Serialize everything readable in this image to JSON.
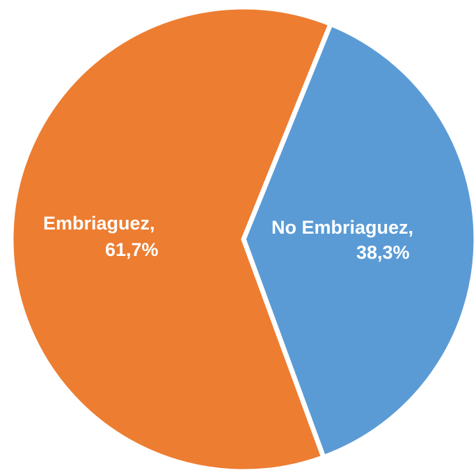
{
  "chart_data": {
    "type": "pie",
    "slices": [
      {
        "name": "No Embriaguez",
        "value": 38.3,
        "label_line1": "No Embriaguez,",
        "label_line2": "38,3%",
        "color": "#5B9BD5"
      },
      {
        "name": "Embriaguez",
        "value": 61.7,
        "label_line1": "Embriaguez,",
        "label_line2": "61,7%",
        "color": "#ED7D31"
      }
    ],
    "title": "",
    "legend": "none",
    "separator_color": "#ffffff"
  }
}
